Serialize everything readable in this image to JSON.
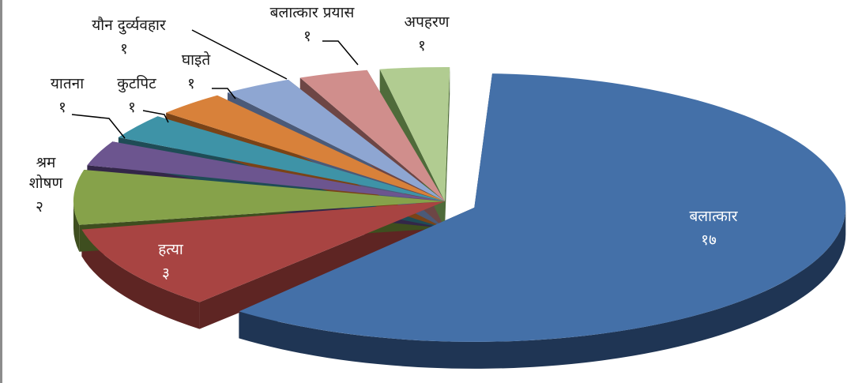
{
  "chart_data": {
    "type": "pie",
    "title": "",
    "legend": "none",
    "categories": [
      "बलात्कार",
      "हत्या",
      "श्रम शोषण",
      "यातना",
      "कुटपिट",
      "घाइते",
      "यौन दुर्व्यवहार",
      "बलात्कार प्रयास",
      "अपहरण"
    ],
    "values": [
      17,
      3,
      2,
      1,
      1,
      1,
      1,
      1,
      1
    ],
    "value_labels": [
      "१७",
      "३",
      "२",
      "१",
      "१",
      "१",
      "१",
      "१",
      "१"
    ],
    "colors": [
      "#4470A8",
      "#A84442",
      "#86A24A",
      "#6C558F",
      "#3E93A7",
      "#D8813A",
      "#8EA6D2",
      "#D08E8C",
      "#B1CC91"
    ],
    "depth_colors": [
      "#1F3554",
      "#5E2523",
      "#3E4E1F",
      "#332748",
      "#1F4C56",
      "#7A4317",
      "#4B5A78",
      "#6D4645",
      "#4F6B3A"
    ]
  }
}
